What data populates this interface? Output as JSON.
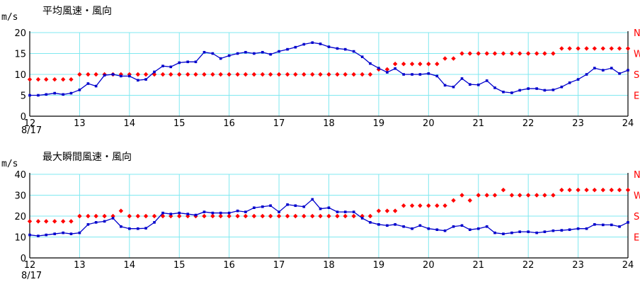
{
  "chart_data": [
    {
      "type": "line",
      "title": "平均風速・風向",
      "ylabel": "m/s",
      "ylim": [
        0,
        20
      ],
      "yticks": [
        "0",
        "5",
        "10",
        "15",
        "20"
      ],
      "xlim": [
        12,
        24
      ],
      "xticks": [
        "12",
        "13",
        "14",
        "15",
        "16",
        "17",
        "18",
        "19",
        "20",
        "21",
        "22",
        "23",
        "24"
      ],
      "xsub": "8/17",
      "dir_labels": [
        "N",
        "W",
        "S",
        "E"
      ],
      "grid": true,
      "colors": {
        "grid": "#80e8f0",
        "speed": "#0000cc",
        "dir": "#ff0000"
      },
      "series": [
        {
          "x": [
            12,
            12.17,
            12.33,
            12.5,
            12.67,
            12.83,
            13,
            13.17,
            13.33,
            13.5,
            13.67,
            13.83,
            14,
            14.17,
            14.33,
            14.5,
            14.67,
            14.83,
            15,
            15.17,
            15.33,
            15.5,
            15.67,
            15.83,
            16,
            16.17,
            16.33,
            16.5,
            16.67,
            16.83,
            17,
            17.17,
            17.33,
            17.5,
            17.67,
            17.83,
            18,
            18.17,
            18.33,
            18.5,
            18.67,
            18.83,
            19,
            19.17,
            19.33,
            19.5,
            19.67,
            19.83,
            20,
            20.17,
            20.33,
            20.5,
            20.67,
            20.83,
            21,
            21.17,
            21.33,
            21.5,
            21.67,
            21.83,
            22,
            22.17,
            22.33,
            22.5,
            22.67,
            22.83,
            23,
            23.17,
            23.33,
            23.5,
            23.67,
            23.83,
            24
          ],
          "values": [
            5,
            5,
            5.2,
            5.5,
            5.2,
            5.5,
            6.3,
            7.8,
            7.2,
            9.8,
            10,
            9.6,
            9.6,
            8.6,
            8.8,
            10.6,
            12,
            11.8,
            12.8,
            13,
            13,
            15.3,
            15,
            13.8,
            14.5,
            15,
            15.3,
            15,
            15.3,
            14.8,
            15.5,
            16,
            16.5,
            17.2,
            17.6,
            17.3,
            16.6,
            16.2,
            16,
            15.5,
            14.2,
            12.6,
            11.5,
            10.5,
            11.4,
            10,
            10,
            10,
            10.2,
            9.6,
            7.4,
            7,
            9,
            7.6,
            7.5,
            8.5,
            6.8,
            5.8,
            5.6,
            6.2,
            6.6,
            6.6,
            6.2,
            6.3,
            7,
            8,
            8.8,
            10,
            11.5,
            11,
            11.5,
            10.2,
            11
          ]
        }
      ],
      "direction": [
        {
          "x": [
            12,
            12.17,
            12.33,
            12.5,
            12.67,
            12.83
          ],
          "v": 8.8
        },
        {
          "x": [
            13,
            13.17,
            13.33,
            13.5,
            13.67,
            13.83,
            14,
            14.17,
            14.33,
            14.5,
            14.67,
            14.83,
            15,
            15.17,
            15.33,
            15.5,
            15.67,
            15.83,
            16,
            16.17,
            16.33,
            16.5,
            16.67,
            16.83,
            17,
            17.17,
            17.33,
            17.5,
            17.67,
            17.83,
            18,
            18.17,
            18.33,
            18.5,
            18.67,
            18.83
          ],
          "v": 10
        },
        {
          "x": [
            19,
            19.17
          ],
          "v": 11.2
        },
        {
          "x": [
            19.33,
            19.5,
            19.67,
            19.83,
            20,
            20.17
          ],
          "v": 12.5
        },
        {
          "x": [
            20.33,
            20.5
          ],
          "v": 13.8
        },
        {
          "x": [
            20.67,
            20.83,
            21,
            21.17,
            21.33,
            21.5,
            21.67,
            21.83,
            22,
            22.17,
            22.33,
            22.5
          ],
          "v": 15
        },
        {
          "x": [
            22.67,
            22.83,
            23,
            23.17,
            23.33,
            23.5,
            23.67,
            23.83,
            24
          ],
          "v": 16.2
        }
      ]
    },
    {
      "type": "line",
      "title": "最大瞬間風速・風向",
      "ylabel": "m/s",
      "ylim": [
        0,
        40
      ],
      "yticks": [
        "0",
        "10",
        "20",
        "30",
        "40"
      ],
      "xlim": [
        12,
        24
      ],
      "xticks": [
        "12",
        "13",
        "14",
        "15",
        "16",
        "17",
        "18",
        "19",
        "20",
        "21",
        "22",
        "23",
        "24"
      ],
      "xsub": "8/17",
      "dir_labels": [
        "N",
        "W",
        "S",
        "E"
      ],
      "grid": true,
      "colors": {
        "grid": "#80e8f0",
        "speed": "#0000cc",
        "dir": "#ff0000"
      },
      "series": [
        {
          "x": [
            12,
            12.17,
            12.33,
            12.5,
            12.67,
            12.83,
            13,
            13.17,
            13.33,
            13.5,
            13.67,
            13.83,
            14,
            14.17,
            14.33,
            14.5,
            14.67,
            14.83,
            15,
            15.17,
            15.33,
            15.5,
            15.67,
            15.83,
            16,
            16.17,
            16.33,
            16.5,
            16.67,
            16.83,
            17,
            17.17,
            17.33,
            17.5,
            17.67,
            17.83,
            18,
            18.17,
            18.33,
            18.5,
            18.67,
            18.83,
            19,
            19.17,
            19.33,
            19.5,
            19.67,
            19.83,
            20,
            20.17,
            20.33,
            20.5,
            20.67,
            20.83,
            21,
            21.17,
            21.33,
            21.5,
            21.67,
            21.83,
            22,
            22.17,
            22.33,
            22.5,
            22.67,
            22.83,
            23,
            23.17,
            23.33,
            23.5,
            23.67,
            23.83,
            24
          ],
          "values": [
            11,
            10.5,
            11,
            11.5,
            12,
            11.5,
            12,
            16,
            17,
            17.5,
            19,
            15,
            14,
            14,
            14.2,
            17,
            21.5,
            21,
            21.5,
            21,
            20.5,
            22,
            21.5,
            21.5,
            21.5,
            22.5,
            22,
            24,
            24.5,
            25,
            22,
            25.5,
            25,
            24.5,
            28,
            23.5,
            24,
            22,
            22,
            22,
            19,
            17,
            16,
            15.5,
            16,
            15,
            14,
            15.5,
            14,
            13.5,
            13,
            15,
            15.5,
            13.5,
            14,
            15,
            12,
            11.5,
            12,
            12.5,
            12.5,
            12,
            12.5,
            13,
            13.2,
            13.5,
            14,
            14,
            16,
            15.8,
            15.8,
            15,
            17
          ]
        }
      ],
      "direction": [
        {
          "x": [
            12,
            12.17,
            12.33,
            12.5,
            12.67,
            12.83
          ],
          "v": 17.5
        },
        {
          "x": [
            13,
            13.17,
            13.33,
            13.5,
            13.67
          ],
          "v": 20
        },
        {
          "x": [
            13.83
          ],
          "v": 22.5
        },
        {
          "x": [
            14,
            14.17,
            14.33,
            14.5,
            14.67,
            14.83,
            15,
            15.17,
            15.33,
            15.5,
            15.67,
            15.83,
            16,
            16.17,
            16.33,
            16.5,
            16.67,
            16.83,
            17,
            17.17,
            17.33,
            17.5,
            17.67,
            17.83,
            18,
            18.17,
            18.33,
            18.5,
            18.67,
            18.83
          ],
          "v": 20
        },
        {
          "x": [
            19,
            19.17,
            19.33
          ],
          "v": 22.5
        },
        {
          "x": [
            19.5,
            19.67,
            19.83,
            20,
            20.17,
            20.33
          ],
          "v": 25
        },
        {
          "x": [
            20.5
          ],
          "v": 27.5
        },
        {
          "x": [
            20.67
          ],
          "v": 30
        },
        {
          "x": [
            20.83
          ],
          "v": 27.5
        },
        {
          "x": [
            21,
            21.17,
            21.33
          ],
          "v": 30
        },
        {
          "x": [
            21.5
          ],
          "v": 32.5
        },
        {
          "x": [
            21.67,
            21.83,
            22,
            22.17,
            22.33,
            22.5
          ],
          "v": 30
        },
        {
          "x": [
            22.67,
            22.83,
            23,
            23.17,
            23.33,
            23.5,
            23.67,
            23.83,
            24
          ],
          "v": 32.5
        }
      ]
    }
  ]
}
